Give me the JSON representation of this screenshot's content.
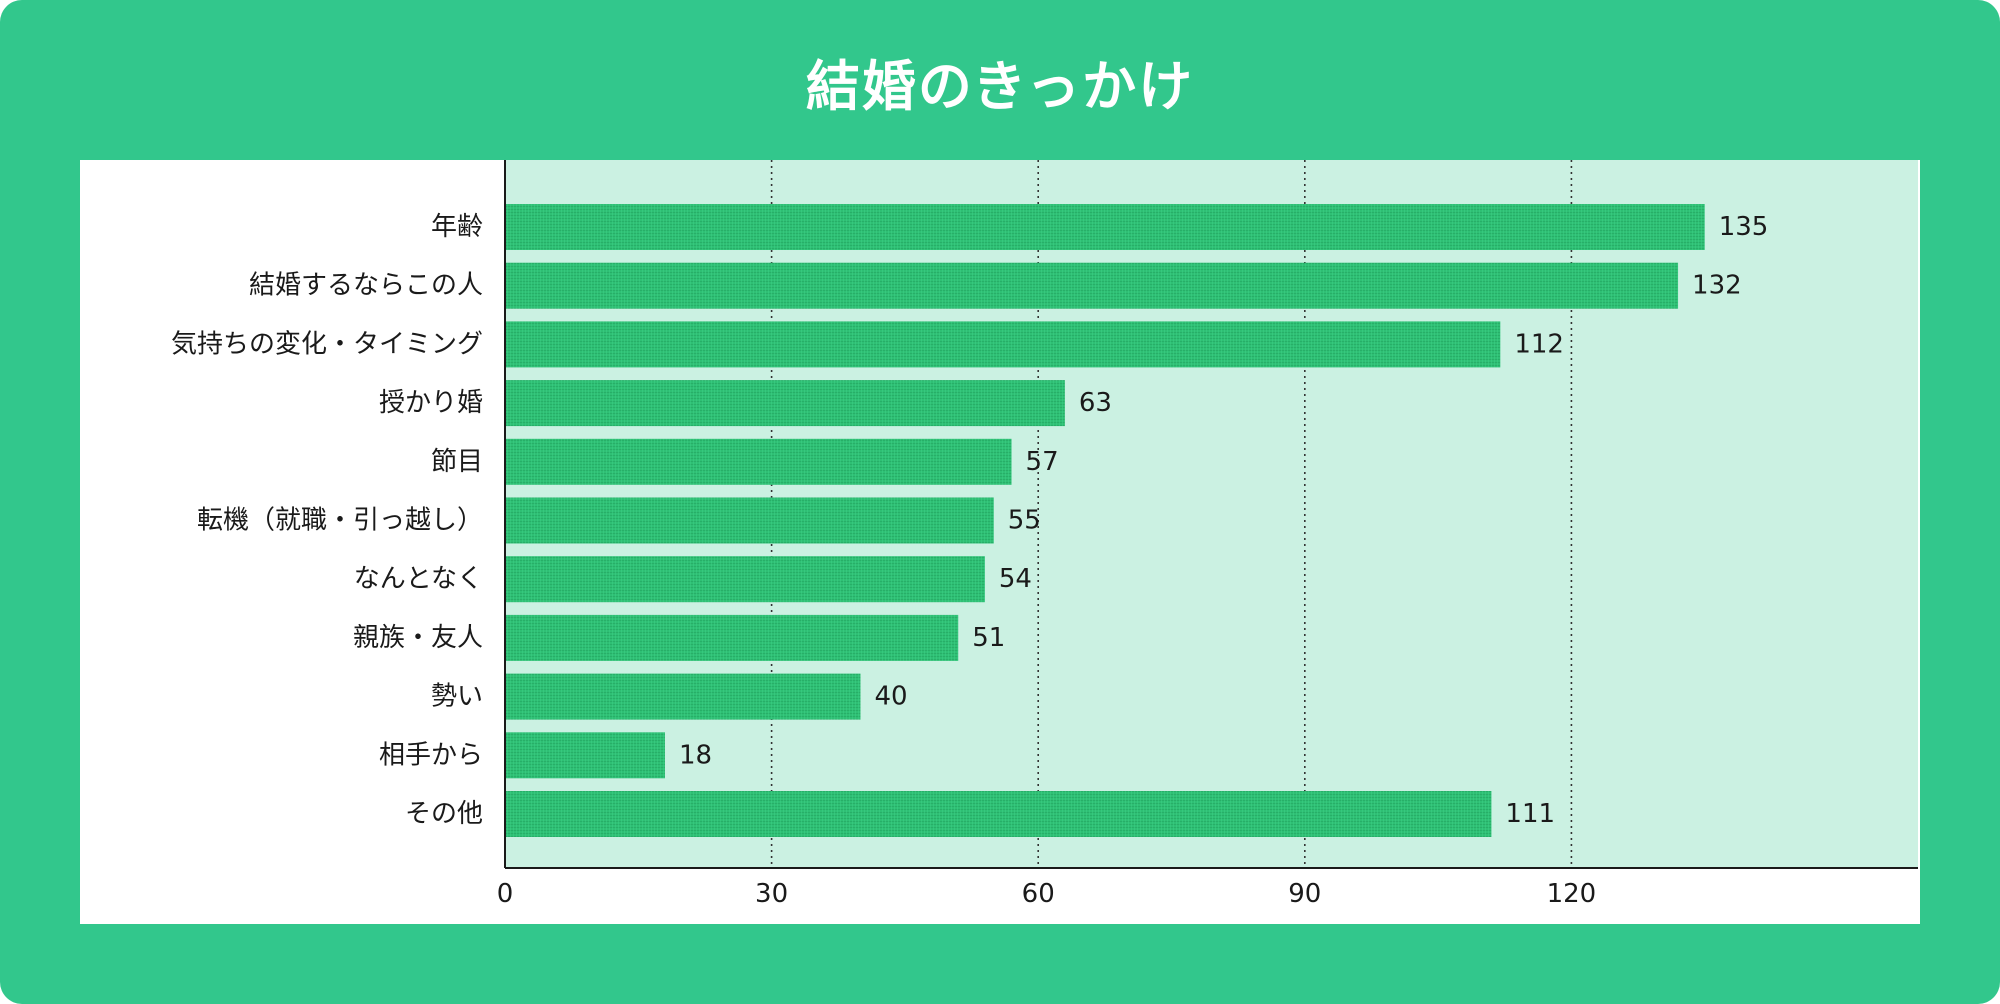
{
  "chart_data": {
    "type": "bar",
    "orientation": "horizontal",
    "title": "結婚のきっかけ",
    "categories": [
      "年齢",
      "結婚するならこの人",
      "気持ちの変化・タイミング",
      "授かり婚",
      "節目",
      "転機（就職・引っ越し）",
      "なんとなく",
      "親族・友人",
      "勢い",
      "相手から",
      "その他"
    ],
    "values": [
      135,
      132,
      112,
      63,
      57,
      55,
      54,
      51,
      40,
      18,
      111
    ],
    "value_labels": [
      "135",
      "132",
      "112",
      "63",
      "57",
      "55",
      "54",
      "51",
      "40",
      "18",
      "111"
    ],
    "xticks": [
      0,
      30,
      60,
      90,
      120
    ],
    "xtick_labels": [
      "0",
      "30",
      "60",
      "90",
      "120"
    ],
    "xlim": [
      0,
      159
    ],
    "grid": "vertical dotted",
    "colors": {
      "frame": "#32c78c",
      "plot_background": "#cbf1e2",
      "bar": "#2fbf74",
      "bar_texture": "#23a862"
    }
  }
}
